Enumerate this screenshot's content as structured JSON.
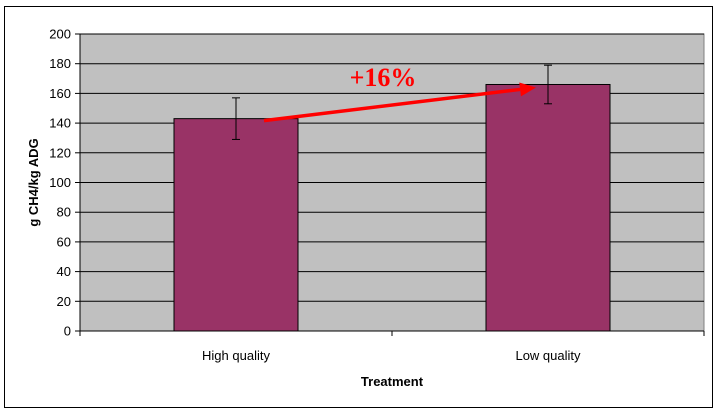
{
  "chart_data": {
    "type": "bar",
    "categories": [
      "High quality",
      "Low quality"
    ],
    "values": [
      143,
      166
    ],
    "error": [
      14,
      13
    ],
    "title": "",
    "xlabel": "Treatment",
    "ylabel": "g CH4/kg ADG",
    "ylim": [
      0,
      200
    ],
    "yticks": [
      0,
      20,
      40,
      60,
      80,
      100,
      120,
      140,
      160,
      180,
      200
    ],
    "grid": true,
    "legend": "none",
    "annotation": {
      "text": "+16%",
      "from": "High quality",
      "to": "Low quality"
    },
    "colors": {
      "bar": "#993366",
      "plot_background": "#c0c0c0",
      "annotation": "#ff0000",
      "grid": "#000000"
    }
  }
}
